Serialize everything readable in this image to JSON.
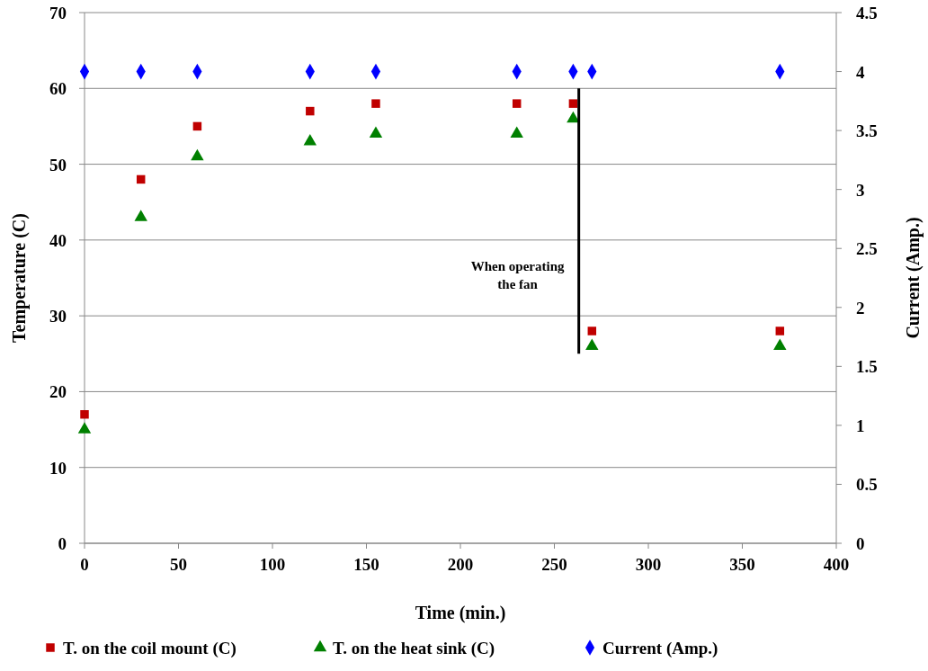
{
  "chart_data": {
    "type": "scatter",
    "xlabel": "Time (min.)",
    "ylabel": "Temperature (C)",
    "y2label": "Current (Amp.)",
    "xlim": [
      0,
      400
    ],
    "xticks": [
      0,
      50,
      100,
      150,
      200,
      250,
      300,
      350,
      400
    ],
    "ylim": [
      0,
      70
    ],
    "yticks": [
      0,
      10,
      20,
      30,
      40,
      50,
      60,
      70
    ],
    "y2lim": [
      0,
      4.5
    ],
    "y2ticks": [
      0,
      0.5,
      1,
      1.5,
      2,
      2.5,
      3,
      3.5,
      4,
      4.5
    ],
    "grid": "y",
    "legend": "bottom",
    "series": [
      {
        "name": "T. on the coil mount (C)",
        "color": "#c00000",
        "marker": "square",
        "x": [
          0,
          30,
          60,
          120,
          155,
          230,
          260,
          270,
          370
        ],
        "values": [
          17,
          48,
          55,
          57,
          58,
          58,
          58,
          28,
          28
        ]
      },
      {
        "name": "T. on the heat sink (C)",
        "color": "#008000",
        "marker": "triangle",
        "x": [
          0,
          30,
          60,
          120,
          155,
          230,
          260,
          270,
          370
        ],
        "values": [
          15,
          43,
          51,
          53,
          54,
          54,
          56,
          26,
          26
        ]
      },
      {
        "name": "Current (Amp.)",
        "color": "#0000ff",
        "marker": "diamond",
        "axis": "y2",
        "x": [
          0,
          30,
          60,
          120,
          155,
          230,
          260,
          270,
          370
        ],
        "values": [
          4,
          4,
          4,
          4,
          4,
          4,
          4,
          4,
          4
        ]
      },
      {
        "type": "line",
        "color": "#000000",
        "marker": "none",
        "x": [
          263,
          263
        ],
        "values": [
          60,
          25
        ]
      }
    ],
    "annotations": [
      {
        "text": "When operating the  fan",
        "x": 263,
        "y": 36
      }
    ]
  }
}
